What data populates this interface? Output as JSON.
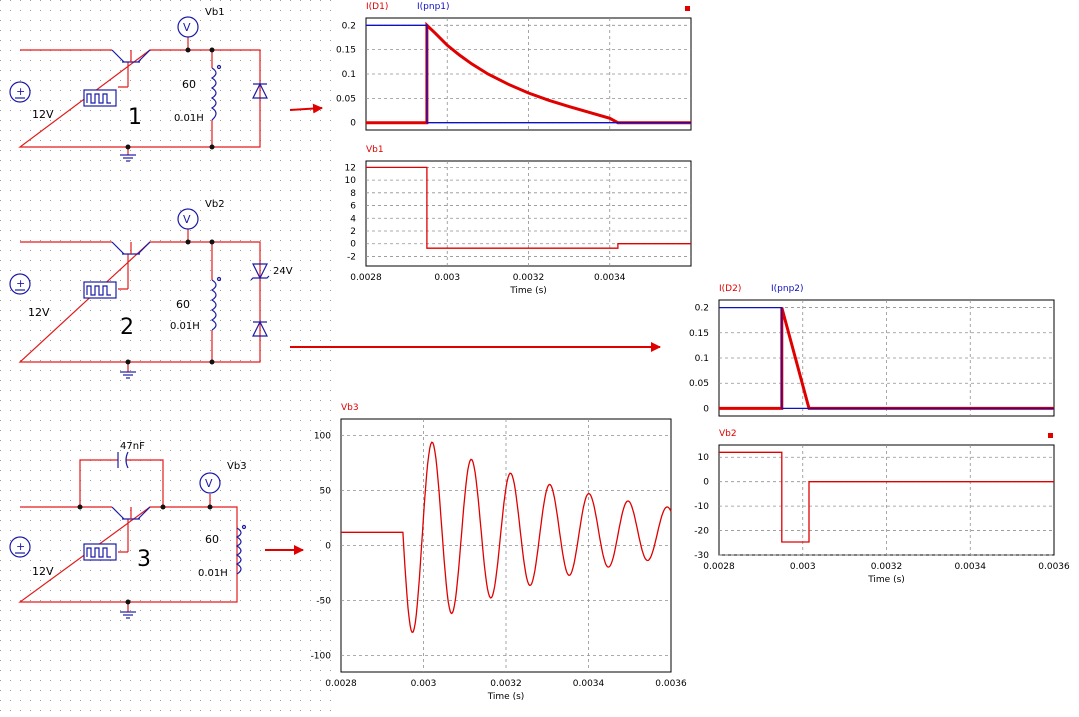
{
  "colors": {
    "wire": "#e31b1b",
    "component": "#1a1aa8",
    "plot_red": "#e00000",
    "plot_blue": "#1010c0",
    "grid": "#909090"
  },
  "circuits": [
    {
      "number": "1",
      "source": "12V",
      "probe": "Vb1",
      "resistor": "60",
      "inductor": "0.01H",
      "meter": "V"
    },
    {
      "number": "2",
      "source": "12V",
      "probe": "Vb2",
      "resistor": "60",
      "inductor": "0.01H",
      "meter": "V",
      "zener": "24V"
    },
    {
      "number": "3",
      "source": "12V",
      "probe": "Vb3",
      "resistor": "60",
      "inductor": "0.01H",
      "meter": "V",
      "capacitor": "47nF"
    }
  ],
  "chart_data": [
    {
      "type": "line",
      "legend": [
        "I(D1)",
        "I(pnp1)"
      ],
      "ylim": [
        -0.015,
        0.215
      ],
      "yticks": [
        0,
        0.05,
        0.1,
        0.15,
        0.2
      ],
      "xlim": [
        0.0028,
        0.0036
      ],
      "x_tick_labels": [],
      "series": [
        {
          "name": "I(D1)",
          "color": "red",
          "x": [
            0.0028,
            0.00295,
            0.00295,
            0.00297,
            0.003,
            0.00303,
            0.00306,
            0.0031,
            0.00315,
            0.0032,
            0.00325,
            0.0033,
            0.0034,
            0.00342,
            0.0036
          ],
          "y": [
            0,
            0,
            0.2,
            0.184,
            0.159,
            0.139,
            0.121,
            0.1,
            0.079,
            0.061,
            0.046,
            0.033,
            0.009,
            0,
            0
          ]
        },
        {
          "name": "I(pnp1)",
          "color": "blue",
          "x": [
            0.0028,
            0.00295,
            0.00295,
            0.0036
          ],
          "y": [
            0.2,
            0.2,
            0,
            0
          ]
        }
      ]
    },
    {
      "type": "line",
      "legend": [
        "Vb1"
      ],
      "ylim": [
        -3.5,
        13
      ],
      "yticks": [
        -2,
        0,
        2,
        4,
        6,
        8,
        10,
        12
      ],
      "xlim": [
        0.0028,
        0.0036
      ],
      "x_tick_labels": [
        "0.0028",
        "0.003",
        "0.0032",
        "0.0034"
      ],
      "xlabel": "Time (s)",
      "series": [
        {
          "name": "Vb1",
          "color": "red",
          "x": [
            0.0028,
            0.00295,
            0.00295,
            0.00342,
            0.00342,
            0.0036
          ],
          "y": [
            12,
            12,
            -0.7,
            -0.7,
            0,
            0
          ]
        }
      ]
    },
    {
      "type": "line",
      "legend": [
        "I(D2)",
        "I(pnp2)"
      ],
      "ylim": [
        -0.015,
        0.215
      ],
      "yticks": [
        0,
        0.05,
        0.1,
        0.15,
        0.2
      ],
      "xlim": [
        0.0028,
        0.0036
      ],
      "x_tick_labels": [],
      "series": [
        {
          "name": "I(D2)",
          "color": "red",
          "x": [
            0.0028,
            0.00295,
            0.00295,
            0.003015,
            0.0036
          ],
          "y": [
            0,
            0,
            0.2,
            0,
            0
          ]
        },
        {
          "name": "I(pnp2)",
          "color": "blue",
          "x": [
            0.0028,
            0.00295,
            0.00295,
            0.0036
          ],
          "y": [
            0.2,
            0.2,
            0,
            0
          ]
        }
      ]
    },
    {
      "type": "line",
      "legend": [
        "Vb2"
      ],
      "ylim": [
        -30,
        15
      ],
      "yticks": [
        -30,
        -20,
        -10,
        0,
        10
      ],
      "xlim": [
        0.0028,
        0.0036
      ],
      "x_tick_labels": [
        "0.0028",
        "0.003",
        "0.0032",
        "0.0034",
        "0.0036"
      ],
      "xlabel": "Time (s)",
      "series": [
        {
          "name": "Vb2",
          "color": "red",
          "x": [
            0.0028,
            0.00295,
            0.00295,
            0.003015,
            0.003015,
            0.0036
          ],
          "y": [
            12,
            12,
            -24.7,
            -24.7,
            0,
            0
          ]
        }
      ]
    },
    {
      "type": "line",
      "legend": [
        "Vb3"
      ],
      "ylim": [
        -115,
        115
      ],
      "yticks": [
        -100,
        -50,
        0,
        50,
        100
      ],
      "xlim": [
        0.0028,
        0.0036
      ],
      "x_tick_labels": [
        "0.0028",
        "0.003",
        "0.0032",
        "0.0034",
        "0.0036"
      ],
      "xlabel": "Time (s)",
      "damped_sine": {
        "x_start": 0.00295,
        "y_offset": 12,
        "amplitude": 96,
        "period": 9.5e-05,
        "decay_time": 0.00045,
        "value_before": 12
      },
      "series": [
        {
          "name": "Vb3",
          "color": "red",
          "x": [],
          "y": []
        }
      ]
    }
  ]
}
